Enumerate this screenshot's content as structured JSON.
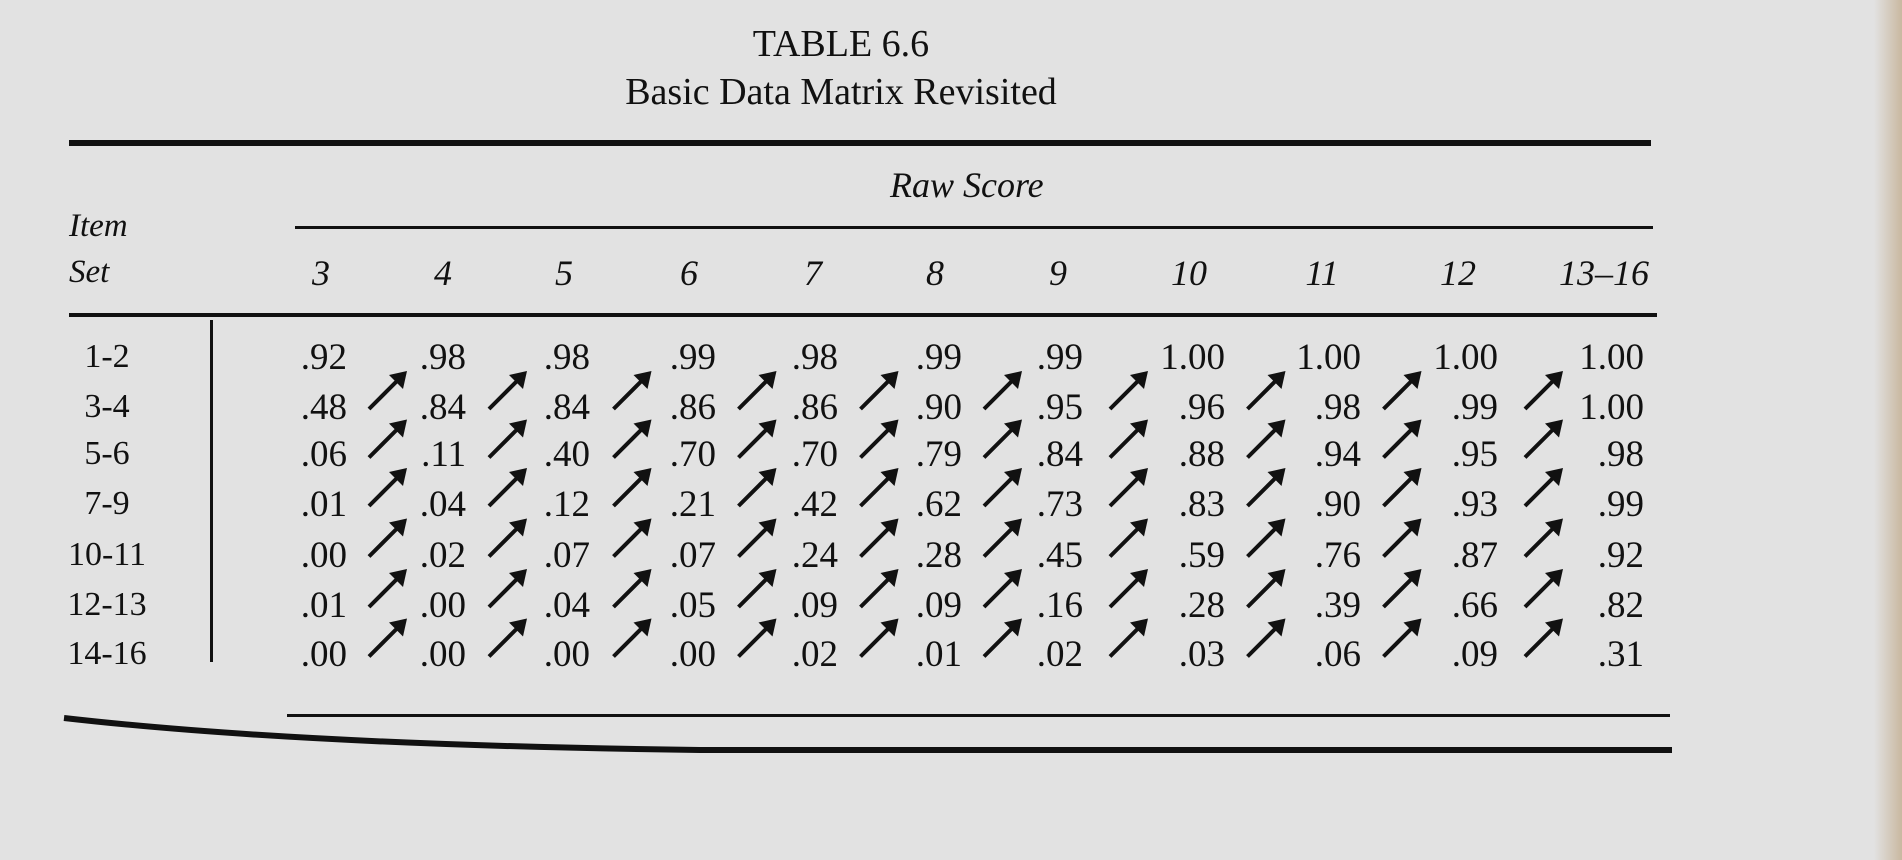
{
  "table": {
    "title": "TABLE 6.6",
    "subtitle": "Basic Data Matrix Revisited",
    "spanner": "Raw Score",
    "stub_header": [
      "Item",
      "Set"
    ],
    "columns": [
      "3",
      "4",
      "5",
      "6",
      "7",
      "8",
      "9",
      "10",
      "11",
      "12",
      "13–16"
    ],
    "rows": [
      {
        "label": "1-2",
        "values": [
          ".92",
          ".98",
          ".98",
          ".99",
          ".98",
          ".99",
          ".99",
          "1.00",
          "1.00",
          "1.00",
          "1.00"
        ]
      },
      {
        "label": "3-4",
        "values": [
          ".48",
          ".84",
          ".84",
          ".86",
          ".86",
          ".90",
          ".95",
          ".96",
          ".98",
          ".99",
          "1.00"
        ]
      },
      {
        "label": "5-6",
        "values": [
          ".06",
          ".11",
          ".40",
          ".70",
          ".70",
          ".79",
          ".84",
          ".88",
          ".94",
          ".95",
          ".98"
        ]
      },
      {
        "label": "7-9",
        "values": [
          ".01",
          ".04",
          ".12",
          ".21",
          ".42",
          ".62",
          ".73",
          ".83",
          ".90",
          ".93",
          ".99"
        ]
      },
      {
        "label": "10-11",
        "values": [
          ".00",
          ".02",
          ".07",
          ".07",
          ".24",
          ".28",
          ".45",
          ".59",
          ".76",
          ".87",
          ".92"
        ]
      },
      {
        "label": "12-13",
        "values": [
          ".01",
          ".00",
          ".04",
          ".05",
          ".09",
          ".09",
          ".16",
          ".28",
          ".39",
          ".66",
          ".82"
        ]
      },
      {
        "label": "14-16",
        "values": [
          ".00",
          ".00",
          ".00",
          ".00",
          ".02",
          ".01",
          ".02",
          ".03",
          ".06",
          ".09",
          ".31"
        ]
      }
    ],
    "arrow_icon": "arrow-up-right-icon"
  }
}
